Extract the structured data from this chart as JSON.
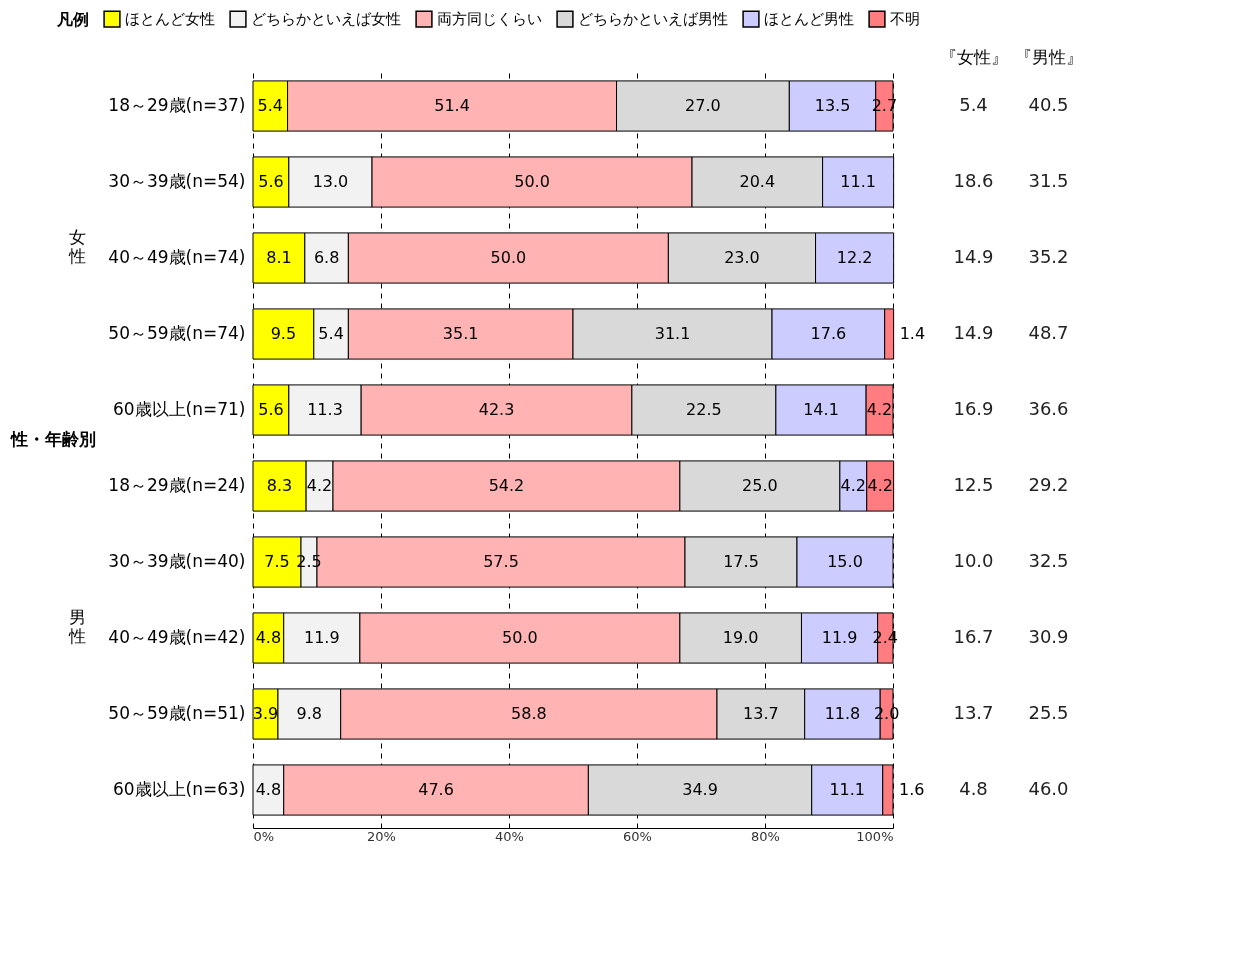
{
  "chart_data": {
    "type": "bar",
    "orientation": "horizontal",
    "stacked": true,
    "grid": "x",
    "legend": "top",
    "legend_title": "凡例",
    "ylabel": "性・年齢別",
    "categories": [
      "18～29歳(n=37)",
      "30～39歳(n=54)",
      "40～49歳(n=74)",
      "50～59歳(n=74)",
      "60歳以上(n=71)",
      "18～29歳(n=24)",
      "30～39歳(n=40)",
      "40～49歳(n=42)",
      "50～59歳(n=51)",
      "60歳以上(n=63)"
    ],
    "xlim": [
      0,
      100
    ],
    "xticks": [
      {
        "value": 0,
        "label": "0%"
      },
      {
        "value": 20,
        "label": "20%"
      },
      {
        "value": 40,
        "label": "40%"
      },
      {
        "value": 60,
        "label": "60%"
      },
      {
        "value": 80,
        "label": "80%"
      },
      {
        "value": 100,
        "label": "100%"
      }
    ],
    "series": [
      {
        "name": "ほとんど女性",
        "color": "#ffff00",
        "values": [
          5.4,
          5.6,
          8.1,
          9.5,
          5.6,
          8.3,
          7.5,
          4.8,
          3.9,
          null
        ],
        "value_labels": [
          "5.4",
          "5.6",
          "8.1",
          "9.5",
          "5.6",
          "8.3",
          "7.5",
          "4.8",
          "3.9",
          null
        ]
      },
      {
        "name": "どちらかといえば女性",
        "color": "#f2f2f2",
        "values": [
          null,
          13.0,
          6.8,
          5.4,
          11.3,
          4.2,
          2.5,
          11.9,
          9.8,
          4.8
        ],
        "value_labels": [
          null,
          "13.0",
          "6.8",
          "5.4",
          "11.3",
          "4.2",
          "2.5",
          "11.9",
          "9.8",
          "4.8"
        ]
      },
      {
        "name": "両方同じくらい",
        "color": "#ffb3b3",
        "values": [
          51.4,
          50.0,
          50.0,
          35.1,
          42.3,
          54.2,
          57.5,
          50.0,
          58.8,
          47.6
        ],
        "value_labels": [
          "51.4",
          "50.0",
          "50.0",
          "35.1",
          "42.3",
          "54.2",
          "57.5",
          "50.0",
          "58.8",
          "47.6"
        ]
      },
      {
        "name": "どちらかといえば男性",
        "color": "#d9d9d9",
        "values": [
          27.0,
          20.4,
          23.0,
          31.1,
          22.5,
          25.0,
          17.5,
          19.0,
          13.7,
          34.9
        ],
        "value_labels": [
          "27.0",
          "20.4",
          "23.0",
          "31.1",
          "22.5",
          "25.0",
          "17.5",
          "19.0",
          "13.7",
          "34.9"
        ]
      },
      {
        "name": "ほとんど男性",
        "color": "#ccccff",
        "values": [
          13.5,
          11.1,
          12.2,
          17.6,
          14.1,
          4.2,
          15.0,
          11.9,
          11.8,
          11.1
        ],
        "value_labels": [
          "13.5",
          "11.1",
          "12.2",
          "17.6",
          "14.1",
          "4.2",
          "15.0",
          "11.9",
          "11.8",
          "11.1"
        ]
      },
      {
        "name": "不明",
        "color": "#ff7c80",
        "values": [
          2.7,
          null,
          null,
          1.4,
          4.2,
          4.2,
          null,
          2.4,
          2.0,
          1.6
        ],
        "value_labels": [
          "2.7",
          null,
          null,
          "1.4",
          "4.2",
          "4.2",
          null,
          "2.4",
          "2.0",
          "1.6"
        ]
      }
    ],
    "annotations": [
      "女性",
      "男性",
      "『女性』",
      "『男性』",
      "5.4",
      "40.5",
      "18.6",
      "31.5",
      "14.9",
      "35.2",
      "14.9",
      "48.7",
      "16.9",
      "36.6",
      "12.5",
      "29.2",
      "10.0",
      "32.5",
      "16.7",
      "30.9",
      "13.7",
      "25.5",
      "4.8",
      "46.0"
    ]
  }
}
